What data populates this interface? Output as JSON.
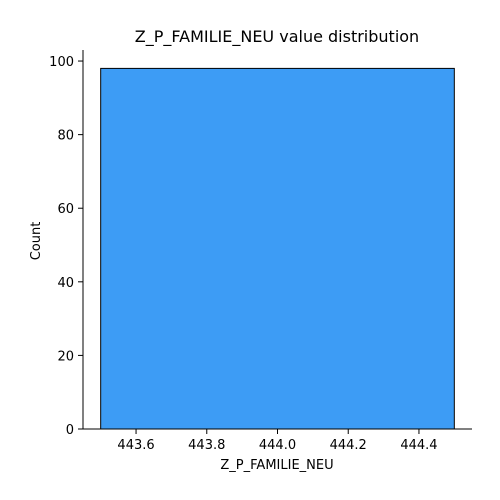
{
  "chart_data": {
    "type": "bar",
    "title": "Z_P_FAMILIE_NEU value distribution",
    "xlabel": "Z_P_FAMILIE_NEU",
    "ylabel": "Count",
    "bins": [
      {
        "x_start": 443.5,
        "x_end": 444.5,
        "count": 98
      }
    ],
    "xlim": [
      443.45,
      444.55
    ],
    "ylim": [
      0,
      103
    ],
    "x_ticks": [
      443.6,
      443.8,
      444.0,
      444.2,
      444.4
    ],
    "x_tick_labels": [
      "443.6",
      "443.8",
      "444.0",
      "444.2",
      "444.4"
    ],
    "y_ticks": [
      0,
      20,
      40,
      60,
      80,
      100
    ],
    "y_tick_labels": [
      "0",
      "20",
      "40",
      "60",
      "80",
      "100"
    ],
    "bar_color": "#3d9cf5",
    "bar_edge_color": "#000000",
    "grid": false,
    "legend": "none"
  }
}
